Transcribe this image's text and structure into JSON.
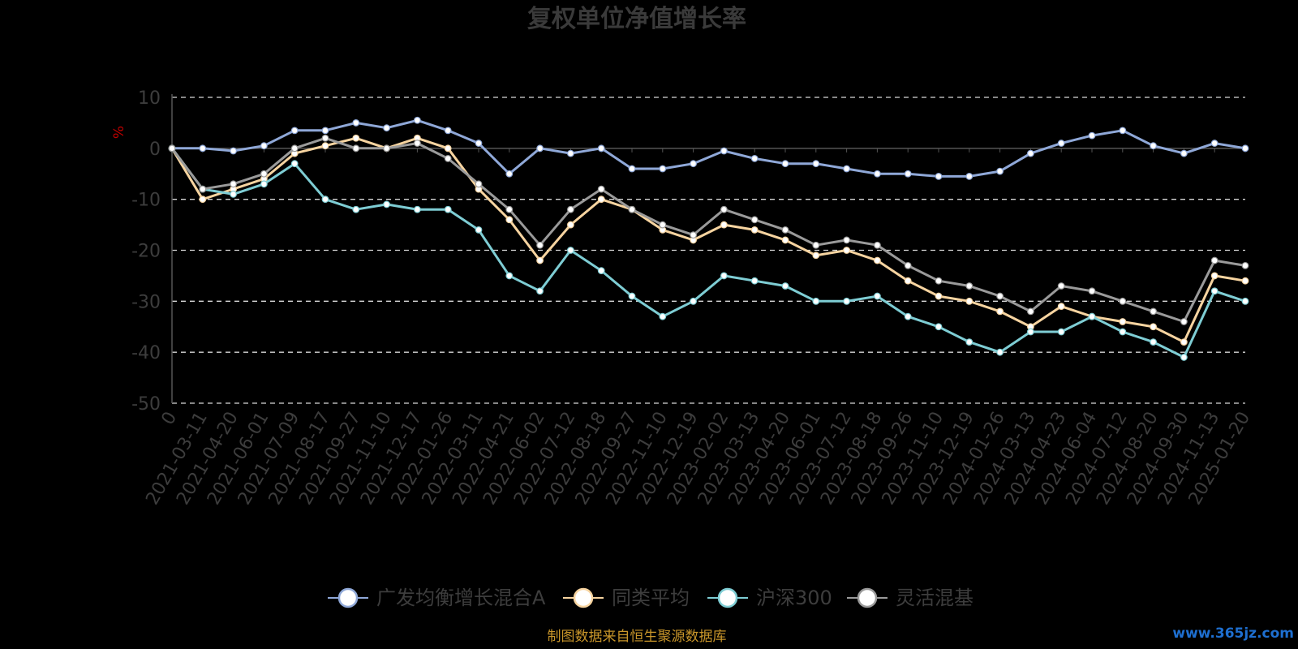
{
  "chart_data": {
    "type": "line",
    "title": "复权单位净值增长率",
    "ylabel": "%",
    "xlabel": "",
    "ylim": [
      -50,
      10
    ],
    "yticks": [
      10,
      0,
      -10,
      -20,
      -30,
      -40,
      -50
    ],
    "grid": true,
    "legend_position": "bottom",
    "categories": [
      "0",
      "2021-03-11",
      "2021-04-20",
      "2021-06-01",
      "2021-07-09",
      "2021-08-17",
      "2021-09-27",
      "2021-11-10",
      "2021-12-17",
      "2022-01-26",
      "2022-03-11",
      "2022-04-21",
      "2022-06-02",
      "2022-07-12",
      "2022-08-18",
      "2022-09-27",
      "2022-11-10",
      "2022-12-19",
      "2023-02-02",
      "2023-03-13",
      "2023-04-20",
      "2023-06-01",
      "2023-07-12",
      "2023-08-18",
      "2023-09-26",
      "2023-11-10",
      "2023-12-19",
      "2024-01-26",
      "2024-03-13",
      "2024-04-23",
      "2024-06-04",
      "2024-07-12",
      "2024-08-20",
      "2024-09-30",
      "2024-11-13",
      "2025-01-20"
    ],
    "series": [
      {
        "name": "广发均衡增长混合A",
        "color": "#8fa8d8",
        "values": [
          0,
          0,
          -0.5,
          0.5,
          3.5,
          3.5,
          5,
          4,
          5.5,
          3.5,
          1,
          -5,
          0,
          -1,
          0,
          -4,
          -4,
          -3,
          -0.5,
          -2,
          -3,
          -3,
          -4,
          -5,
          -5,
          -5.5,
          -5.5,
          -4.5,
          -1,
          1,
          2.5,
          3.5,
          0.5,
          -1,
          1,
          0
        ]
      },
      {
        "name": "同类平均",
        "color": "#f7d4a0",
        "values": [
          0,
          -10,
          -8,
          -6,
          -1,
          0.5,
          2,
          0,
          2,
          0,
          -8,
          -14,
          -22,
          -15,
          -10,
          -12,
          -16,
          -18,
          -15,
          -16,
          -18,
          -21,
          -20,
          -22,
          -26,
          -29,
          -30,
          -32,
          -35,
          -31,
          -33,
          -34,
          -35,
          -38,
          -25,
          -26
        ]
      },
      {
        "name": "沪深300",
        "color": "#7ecdd4",
        "values": [
          0,
          -8,
          -9,
          -7,
          -3,
          -10,
          -12,
          -11,
          -12,
          -12,
          -16,
          -25,
          -28,
          -20,
          -24,
          -29,
          -33,
          -30,
          -25,
          -26,
          -27,
          -30,
          -30,
          -29,
          -33,
          -35,
          -38,
          -40,
          -36,
          -36,
          -33,
          -36,
          -38,
          -41,
          -28,
          -30
        ]
      },
      {
        "name": "灵活混基",
        "color": "#9a9a9a",
        "values": [
          0,
          -8,
          -7,
          -5,
          0,
          2,
          0,
          0,
          1,
          -2,
          -7,
          -12,
          -19,
          -12,
          -8,
          -12,
          -15,
          -17,
          -12,
          -14,
          -16,
          -19,
          -18,
          -19,
          -23,
          -26,
          -27,
          -29,
          -32,
          -27,
          -28,
          -30,
          -32,
          -34,
          -22,
          -23
        ]
      }
    ]
  },
  "source_text": "制图数据来自恒生聚源数据库",
  "watermark_text": "www.365jz.com"
}
